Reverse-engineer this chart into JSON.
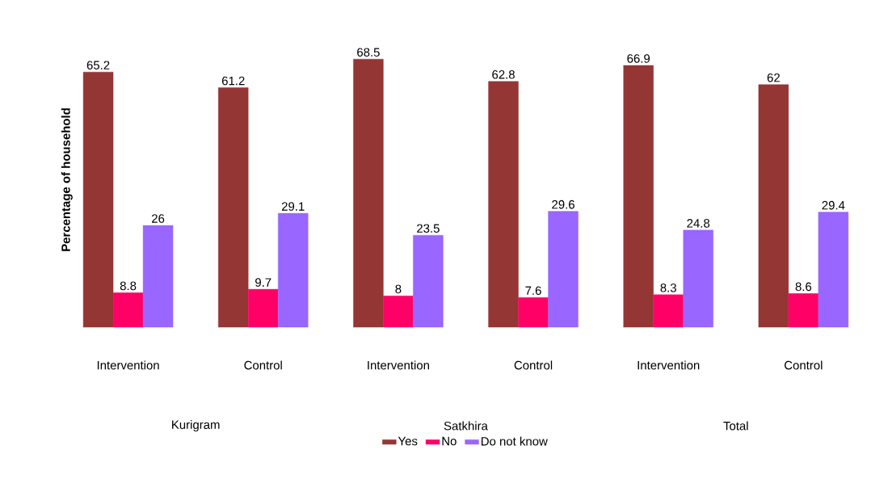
{
  "chart_data": {
    "type": "bar",
    "ylabel": "Percentage of household",
    "categories": [
      "Intervention",
      "Control",
      "Intervention",
      "Control",
      "Intervention",
      "Control"
    ],
    "series": [
      {
        "name": "Yes",
        "color": "#943634",
        "values": [
          65.2,
          61.2,
          68.5,
          62.8,
          66.9,
          62
        ]
      },
      {
        "name": "No",
        "color": "#ff0066",
        "values": [
          8.8,
          9.7,
          8,
          7.6,
          8.3,
          8.6
        ]
      },
      {
        "name": "Do not know",
        "color": "#9966ff",
        "values": [
          26,
          29.1,
          23.5,
          29.6,
          24.8,
          29.4
        ]
      }
    ],
    "annotations": [
      "Kurigram",
      "Satkhira",
      "Total"
    ],
    "data_labels": true,
    "legend": "bottom"
  }
}
